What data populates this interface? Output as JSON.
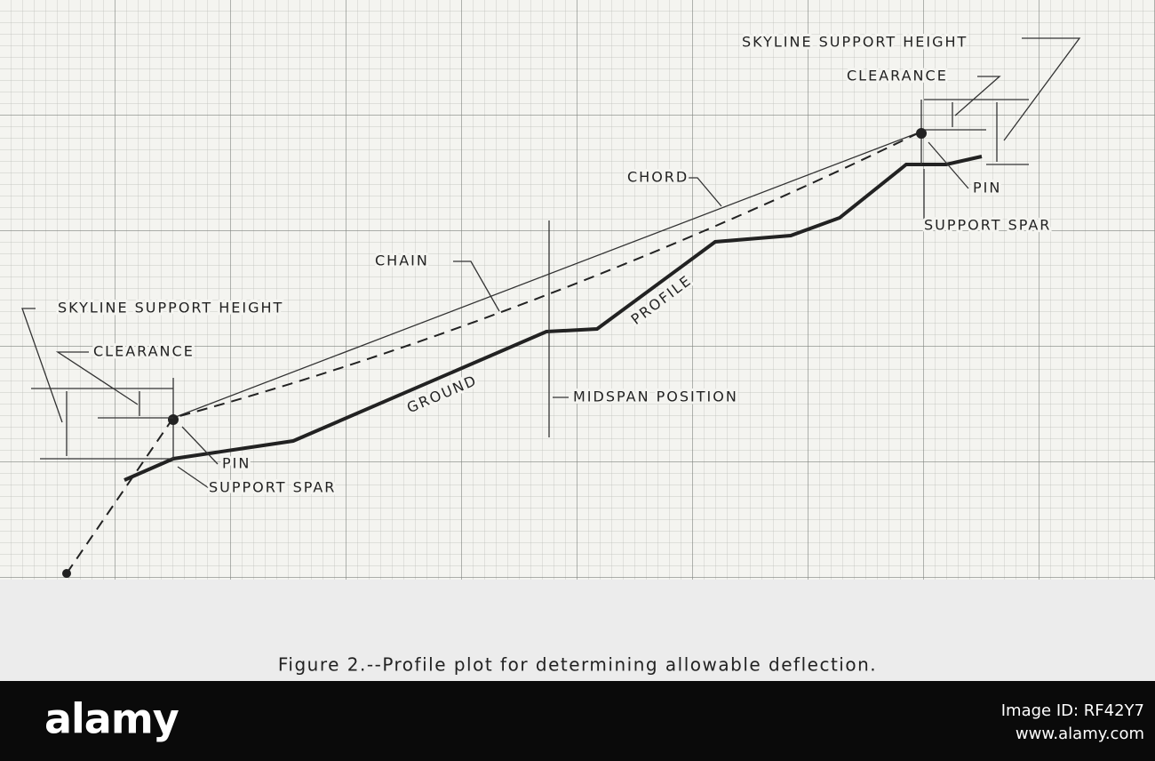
{
  "labels": {
    "right_support_height": "SKYLINE SUPPORT HEIGHT",
    "right_clearance": "CLEARANCE",
    "chord": "CHORD",
    "right_pin": "PIN",
    "right_support_spar": "SUPPORT SPAR",
    "chain": "CHAIN",
    "left_support_height": "SKYLINE SUPPORT HEIGHT",
    "left_clearance": "CLEARANCE",
    "left_pin": "PIN",
    "left_support_spar": "SUPPORT SPAR",
    "ground": "GROUND",
    "profile": "PROFILE",
    "midspan": "MIDSPAN POSITION"
  },
  "caption": "Figure 2.--Profile plot for determining allowable deflection.",
  "footer": {
    "brand": "alamy",
    "image_id": "Image ID: RF42Y7",
    "site": "www.alamy.com"
  }
}
